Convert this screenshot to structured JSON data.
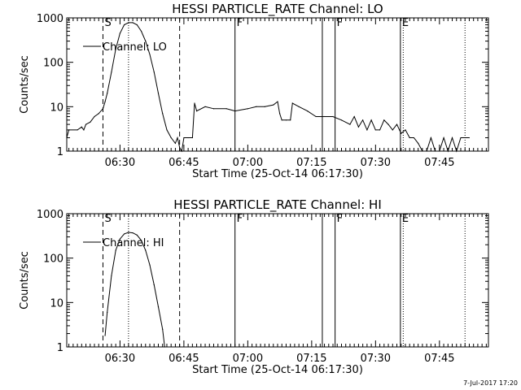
{
  "footer": {
    "stamp": "7-Jul-2017 17:20"
  },
  "chart_data": [
    {
      "type": "line",
      "title": "HESSI PARTICLE_RATE Channel: LO",
      "xlabel": "Start Time (25-Oct-14 06:17:30)",
      "ylabel": "Counts/sec",
      "yscale": "log",
      "ylim": [
        1,
        1000
      ],
      "xlim": [
        "06:17:30",
        "07:56:30"
      ],
      "xticks": [
        "06:30",
        "06:45",
        "07:00",
        "07:15",
        "07:30",
        "07:45"
      ],
      "yticks": [
        "1",
        "10",
        "100",
        "1000"
      ],
      "legend": {
        "label": "Channel: LO",
        "position": "top-left"
      },
      "markers": [
        {
          "label": "S",
          "time": "06:26:00",
          "style": "dashed"
        },
        {
          "label": "",
          "time": "06:44:00",
          "style": "dashed"
        },
        {
          "label": "",
          "time": "06:32:00",
          "style": "dotted"
        },
        {
          "label": "F",
          "time": "06:57:00",
          "style": "solid"
        },
        {
          "label": "",
          "time": "07:17:30",
          "style": "solid"
        },
        {
          "label": "F",
          "time": "07:20:30",
          "style": "solid"
        },
        {
          "label": "E",
          "time": "07:35:50",
          "style": "solid"
        },
        {
          "label": "",
          "time": "07:36:30",
          "style": "dotted"
        },
        {
          "label": "",
          "time": "07:51:00",
          "style": "dotted"
        }
      ],
      "series": [
        {
          "name": "Channel: LO",
          "points": [
            [
              "06:17:30",
              2
            ],
            [
              "06:18:00",
              3
            ],
            [
              "06:20:00",
              3
            ],
            [
              "06:21:00",
              3.5
            ],
            [
              "06:21:30",
              3
            ],
            [
              "06:22:00",
              4
            ],
            [
              "06:23:00",
              4.5
            ],
            [
              "06:24:00",
              6
            ],
            [
              "06:25:00",
              7
            ],
            [
              "06:26:00",
              9
            ],
            [
              "06:26:30",
              13
            ],
            [
              "06:27:00",
              20
            ],
            [
              "06:28:00",
              60
            ],
            [
              "06:29:00",
              200
            ],
            [
              "06:30:00",
              450
            ],
            [
              "06:31:00",
              700
            ],
            [
              "06:32:00",
              780
            ],
            [
              "06:33:00",
              780
            ],
            [
              "06:34:00",
              700
            ],
            [
              "06:35:00",
              500
            ],
            [
              "06:36:00",
              300
            ],
            [
              "06:37:00",
              150
            ],
            [
              "06:38:00",
              60
            ],
            [
              "06:39:00",
              20
            ],
            [
              "06:40:00",
              7
            ],
            [
              "06:41:00",
              3
            ],
            [
              "06:42:00",
              2
            ],
            [
              "06:43:00",
              1.5
            ],
            [
              "06:43:30",
              2
            ],
            [
              "06:44:00",
              1.2
            ],
            [
              "06:44:30",
              1
            ],
            [
              "06:45:00",
              2
            ],
            [
              "06:46:00",
              2
            ],
            [
              "06:47:00",
              2
            ],
            [
              "06:47:30",
              12
            ],
            [
              "06:48:00",
              8
            ],
            [
              "06:50:00",
              10
            ],
            [
              "06:52:00",
              9
            ],
            [
              "06:55:00",
              9
            ],
            [
              "06:57:00",
              8
            ],
            [
              "07:00:00",
              9
            ],
            [
              "07:02:00",
              10
            ],
            [
              "07:04:00",
              10
            ],
            [
              "07:06:00",
              11
            ],
            [
              "07:07:00",
              13
            ],
            [
              "07:07:30",
              7
            ],
            [
              "07:08:00",
              5
            ],
            [
              "07:09:00",
              5
            ],
            [
              "07:10:00",
              5
            ],
            [
              "07:10:30",
              12
            ],
            [
              "07:12:00",
              10
            ],
            [
              "07:14:00",
              8
            ],
            [
              "07:16:00",
              6
            ],
            [
              "07:18:00",
              6
            ],
            [
              "07:20:00",
              6
            ],
            [
              "07:22:00",
              5
            ],
            [
              "07:24:00",
              4
            ],
            [
              "07:25:00",
              6
            ],
            [
              "07:26:00",
              3.5
            ],
            [
              "07:27:00",
              5
            ],
            [
              "07:28:00",
              3
            ],
            [
              "07:29:00",
              5
            ],
            [
              "07:30:00",
              3
            ],
            [
              "07:31:00",
              3
            ],
            [
              "07:32:00",
              5
            ],
            [
              "07:33:00",
              4
            ],
            [
              "07:34:00",
              3
            ],
            [
              "07:35:00",
              4
            ],
            [
              "07:36:00",
              2.5
            ],
            [
              "07:37:00",
              3
            ],
            [
              "07:38:00",
              2
            ],
            [
              "07:39:00",
              2
            ],
            [
              "07:40:00",
              1.5
            ],
            [
              "07:41:00",
              1
            ],
            [
              "07:42:00",
              1
            ],
            [
              "07:43:00",
              2
            ],
            [
              "07:44:00",
              1
            ],
            [
              "07:45:00",
              1
            ],
            [
              "07:46:00",
              2
            ],
            [
              "07:47:00",
              1
            ],
            [
              "07:48:00",
              2
            ],
            [
              "07:49:00",
              1
            ],
            [
              "07:50:00",
              2
            ],
            [
              "07:51:00",
              2
            ],
            [
              "07:52:00",
              2
            ]
          ]
        }
      ]
    },
    {
      "type": "line",
      "title": "HESSI PARTICLE_RATE Channel: HI",
      "xlabel": "Start Time (25-Oct-14 06:17:30)",
      "ylabel": "Counts/sec",
      "yscale": "log",
      "ylim": [
        1,
        1000
      ],
      "xlim": [
        "06:17:30",
        "07:56:30"
      ],
      "xticks": [
        "06:30",
        "06:45",
        "07:00",
        "07:15",
        "07:30",
        "07:45"
      ],
      "yticks": [
        "1",
        "10",
        "100",
        "1000"
      ],
      "legend": {
        "label": "Channel: HI",
        "position": "top-left"
      },
      "markers": [
        {
          "label": "S",
          "time": "06:26:00",
          "style": "dashed"
        },
        {
          "label": "",
          "time": "06:44:00",
          "style": "dashed"
        },
        {
          "label": "",
          "time": "06:32:00",
          "style": "dotted"
        },
        {
          "label": "F",
          "time": "06:57:00",
          "style": "solid"
        },
        {
          "label": "",
          "time": "07:17:30",
          "style": "solid"
        },
        {
          "label": "F",
          "time": "07:20:30",
          "style": "solid"
        },
        {
          "label": "E",
          "time": "07:35:50",
          "style": "solid"
        },
        {
          "label": "",
          "time": "07:36:30",
          "style": "dotted"
        },
        {
          "label": "",
          "time": "07:51:00",
          "style": "dotted"
        }
      ],
      "series": [
        {
          "name": "Channel: HI",
          "points": [
            [
              "06:26:30",
              1.8
            ],
            [
              "06:27:00",
              6
            ],
            [
              "06:28:00",
              40
            ],
            [
              "06:29:00",
              150
            ],
            [
              "06:30:00",
              270
            ],
            [
              "06:31:00",
              350
            ],
            [
              "06:32:00",
              380
            ],
            [
              "06:33:00",
              370
            ],
            [
              "06:34:00",
              330
            ],
            [
              "06:35:00",
              250
            ],
            [
              "06:36:00",
              150
            ],
            [
              "06:37:00",
              70
            ],
            [
              "06:38:00",
              25
            ],
            [
              "06:39:00",
              8
            ],
            [
              "06:40:00",
              2.5
            ],
            [
              "06:40:30",
              1
            ]
          ]
        }
      ]
    }
  ]
}
